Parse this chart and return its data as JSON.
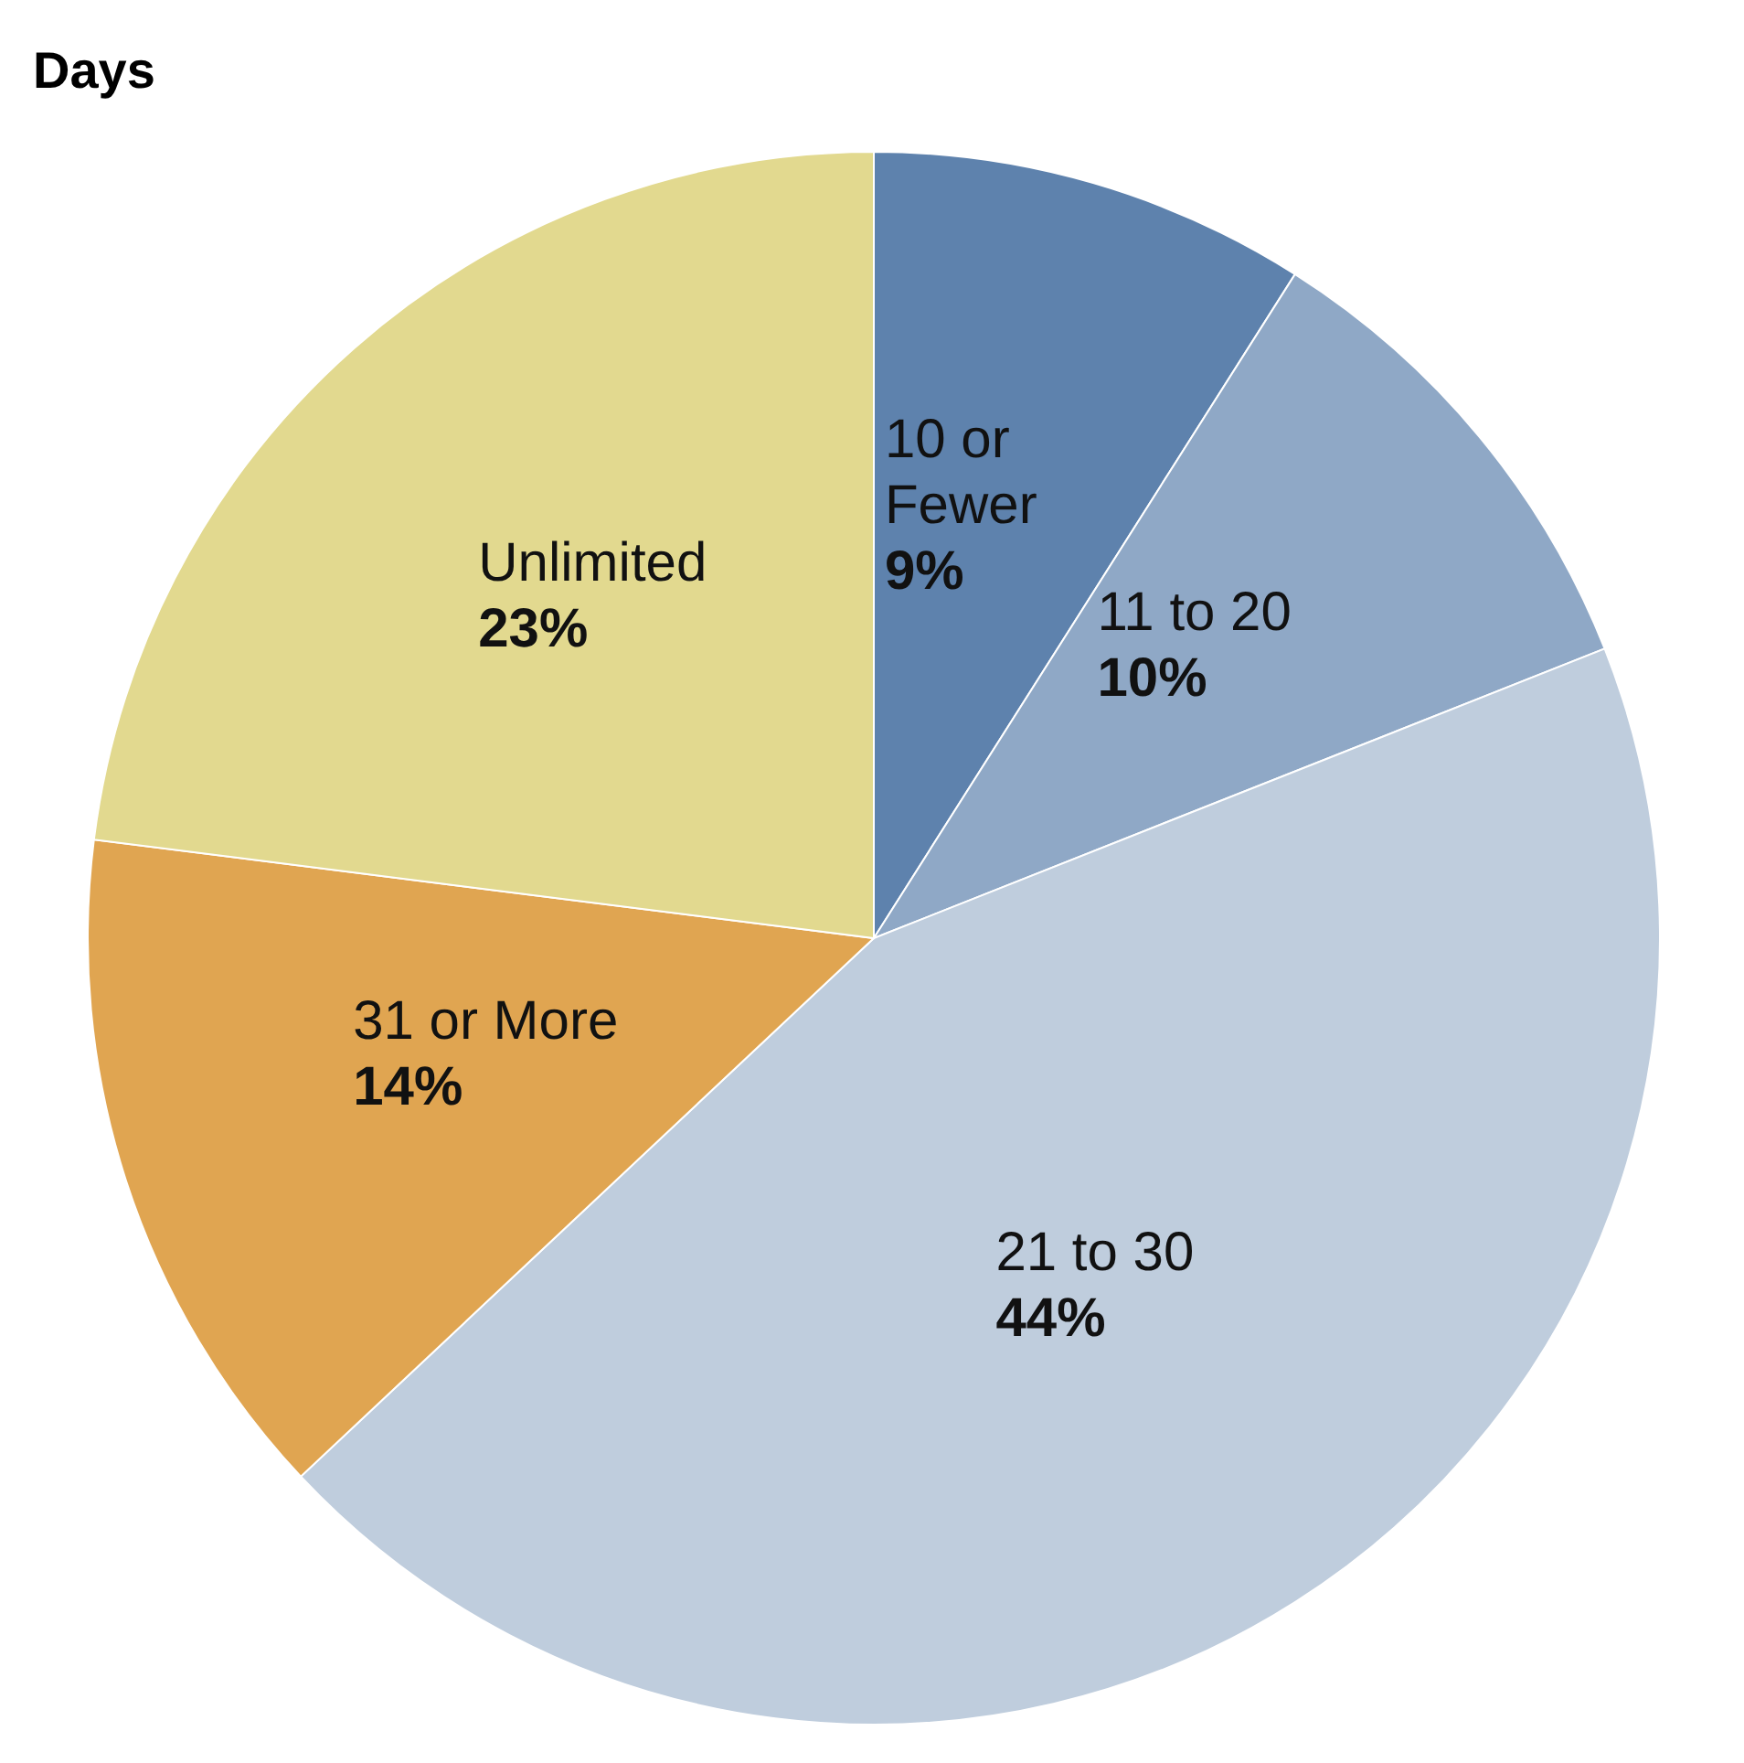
{
  "chart_data": {
    "type": "pie",
    "title": "Days",
    "categories": [
      "10 or Fewer",
      "11 to 20",
      "21 to 30",
      "31 or More",
      "Unlimited"
    ],
    "values": [
      9,
      10,
      44,
      14,
      23
    ],
    "value_labels": [
      "9%",
      "10%",
      "44%",
      "14%",
      "23%"
    ],
    "colors": [
      "#5e82ad",
      "#8fa8c6",
      "#bfcddd",
      "#e0a551",
      "#e2d98f"
    ]
  }
}
